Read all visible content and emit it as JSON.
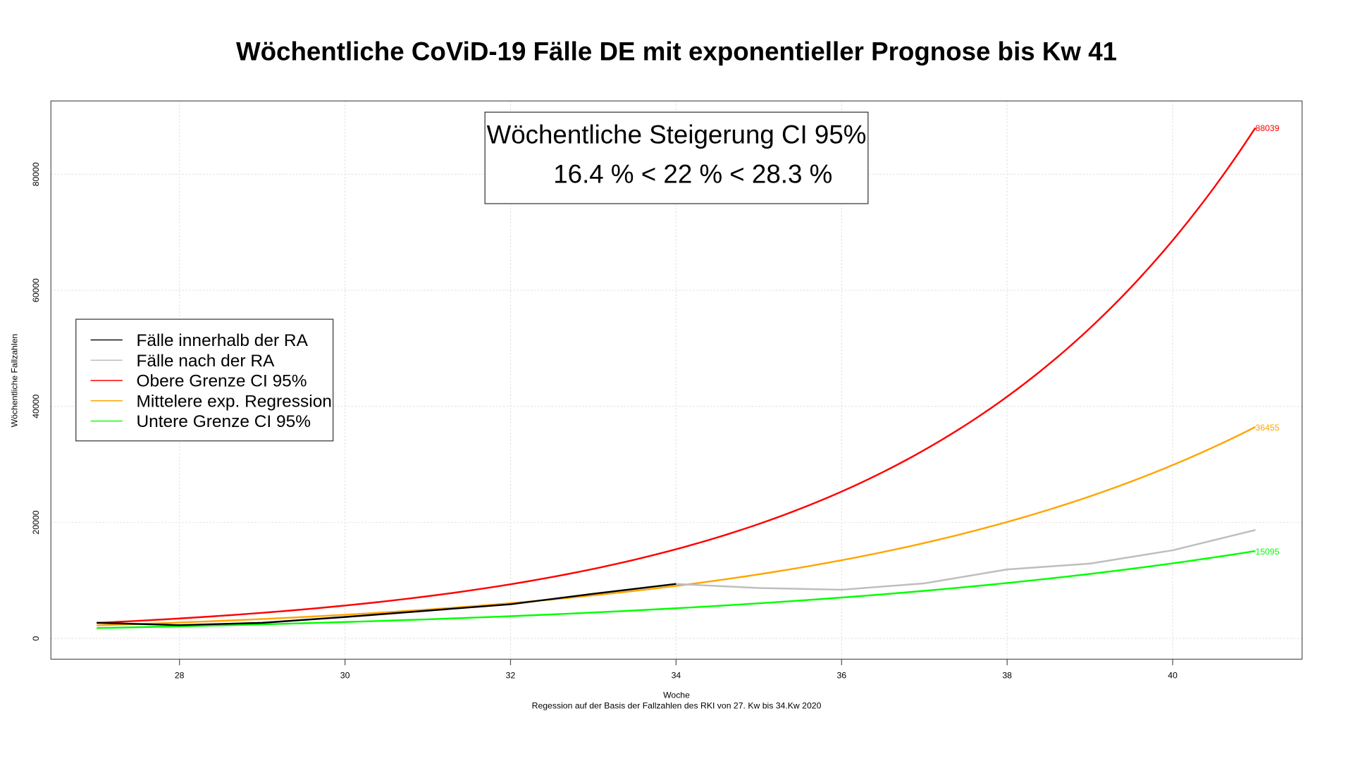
{
  "chart_data": {
    "type": "line",
    "title": "Wöchentliche CoViD-19 Fälle DE mit exponentieller Prognose bis Kw 41",
    "xlabel": "Woche",
    "subtitle": "Regession auf der Basis der Fallzahlen des RKI von 27. Kw bis 34.Kw 2020",
    "ylabel": "Wöchentliche Fallzahlen",
    "xlim": [
      26.5,
      41.6
    ],
    "ylim": [
      -3500,
      91000
    ],
    "xticks": [
      28,
      30,
      32,
      34,
      36,
      38,
      40
    ],
    "yticks": [
      0,
      20000,
      40000,
      60000,
      80000
    ],
    "grid": true,
    "annotation_box": {
      "line1": "Wöchentliche Steigerung CI 95%",
      "line2": "16.4 % < 22 % < 28.3 %"
    },
    "legend_position": "left",
    "series": [
      {
        "name": "Fälle innerhalb der RA",
        "color": "#000000",
        "x": [
          27,
          28,
          29,
          30,
          31,
          32,
          33,
          34
        ],
        "values": [
          2700,
          2300,
          2700,
          3700,
          4800,
          5900,
          7700,
          9400
        ]
      },
      {
        "name": "Fälle nach der RA",
        "color": "#bebebe",
        "x": [
          34,
          35,
          36,
          37,
          38,
          39,
          40,
          41
        ],
        "values": [
          9400,
          8700,
          8400,
          9500,
          11900,
          12900,
          15200,
          18700
        ]
      },
      {
        "name": "Obere Grenze CI 95%",
        "color": "#ff0000",
        "x_start": 27,
        "x_end": 41,
        "start_value": 2688,
        "weekly_rate": 1.283,
        "end_label": "88039"
      },
      {
        "name": "Mittelere exp. Regression",
        "color": "#ffa500",
        "x_start": 27,
        "x_end": 41,
        "start_value": 2253,
        "weekly_rate": 1.22,
        "end_label": "36455"
      },
      {
        "name": "Untere Grenze CI  95%",
        "color": "#00ff00",
        "x_start": 27,
        "x_end": 41,
        "start_value": 1799,
        "weekly_rate": 1.164,
        "end_label": "15095"
      }
    ]
  }
}
